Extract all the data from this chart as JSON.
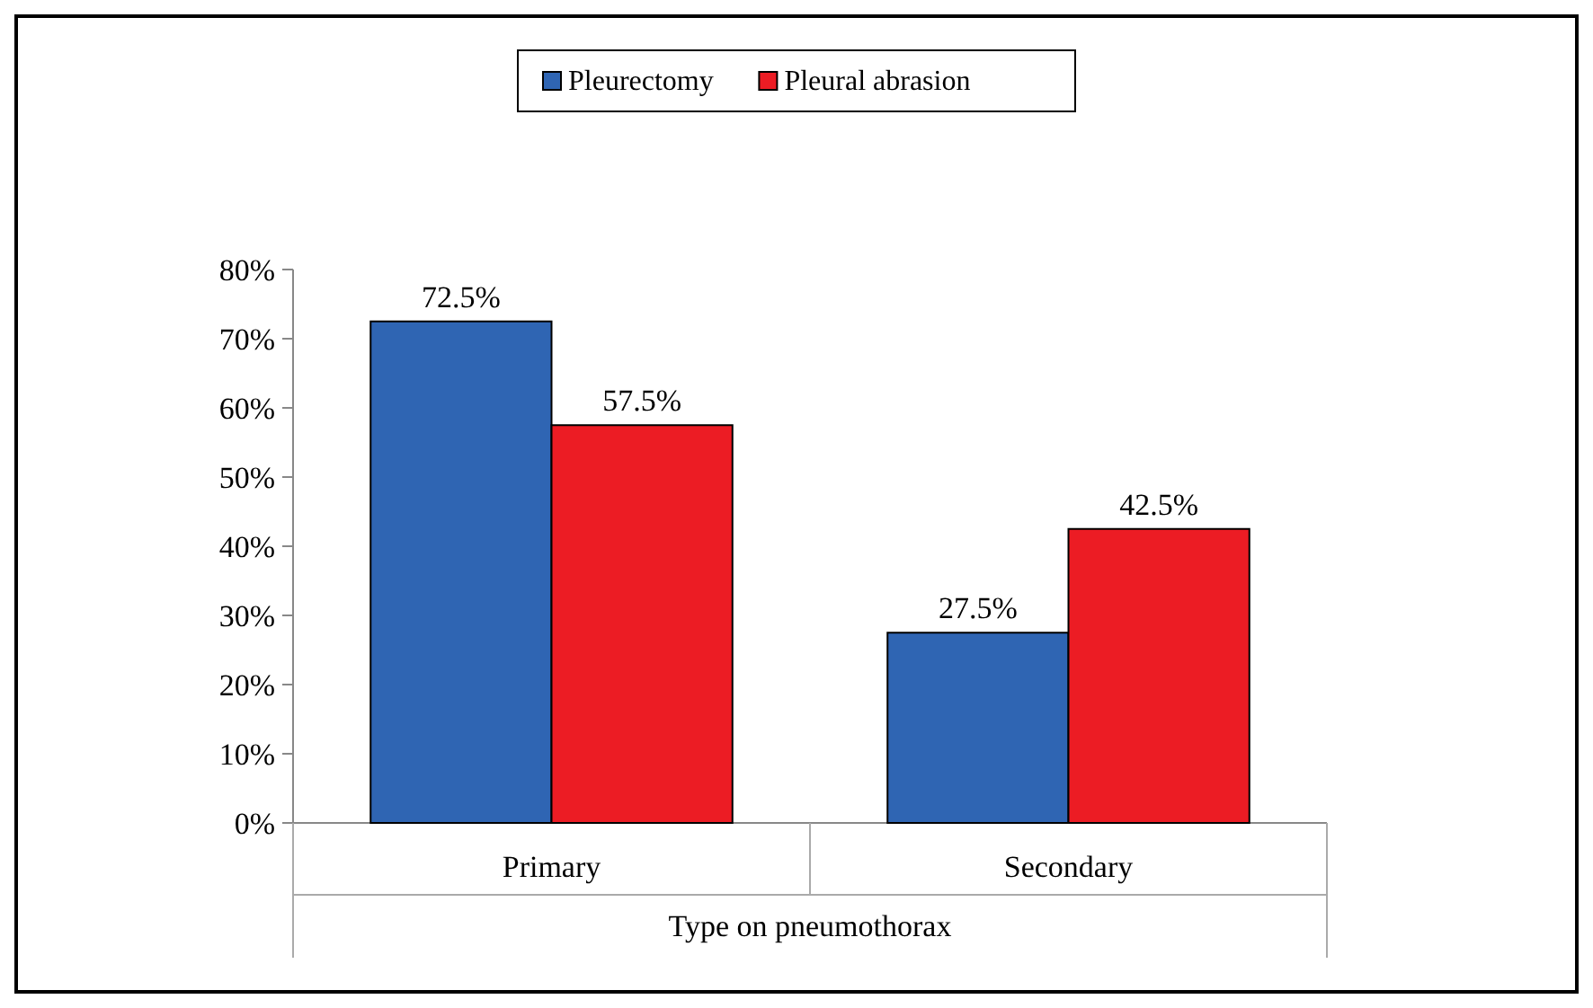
{
  "chart_data": {
    "type": "bar",
    "xlabel": "Type on pneumothorax",
    "categories": [
      "Primary",
      "Secondary"
    ],
    "series": [
      {
        "name": "Pleurectomy",
        "color": "#2f65b3",
        "values": [
          72.5,
          27.5
        ],
        "value_labels": [
          "72.5%",
          "27.5%"
        ]
      },
      {
        "name": "Pleural abrasion",
        "color": "#ec1c24",
        "values": [
          57.5,
          42.5
        ],
        "value_labels": [
          "57.5%",
          "42.5%"
        ]
      }
    ],
    "ylim": [
      0,
      80
    ],
    "yticks": [
      {
        "value": 0,
        "label": "0%"
      },
      {
        "value": 10,
        "label": "10%"
      },
      {
        "value": 20,
        "label": "20%"
      },
      {
        "value": 30,
        "label": "30%"
      },
      {
        "value": 40,
        "label": "40%"
      },
      {
        "value": 50,
        "label": "50%"
      },
      {
        "value": 60,
        "label": "60%"
      },
      {
        "value": 70,
        "label": "70%"
      },
      {
        "value": 80,
        "label": "80%"
      }
    ],
    "legend": "top"
  }
}
